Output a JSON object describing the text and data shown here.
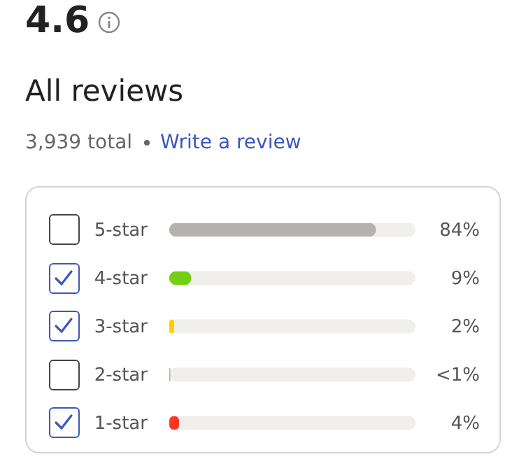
{
  "chart_data": {
    "type": "bar",
    "orientation": "horizontal",
    "title": "All reviews",
    "subtitle": "3,939 total",
    "annotations": [
      "4.6",
      "Write a review"
    ],
    "categories": [
      "5-star",
      "4-star",
      "3-star",
      "2-star",
      "1-star"
    ],
    "values": [
      84,
      9,
      2,
      0.5,
      4
    ],
    "colors": [
      "#b5b3b0",
      "#73cf11",
      "#ffce00",
      "#b5b3b0",
      "#ff3722"
    ],
    "value_labels": [
      "84%",
      "9%",
      "2%",
      "<1%",
      "4%"
    ],
    "xlim": [
      0,
      100
    ],
    "tick_labels": "y"
  }
}
